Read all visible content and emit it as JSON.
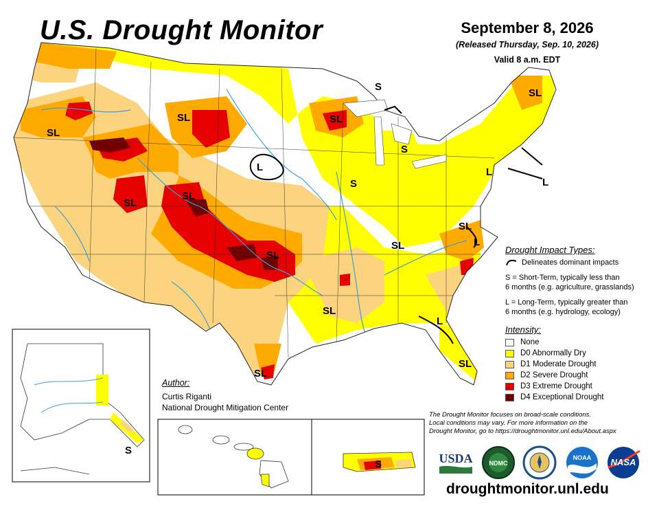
{
  "header": {
    "title": "U.S. Drought Monitor",
    "date": "September 8, 2026",
    "released": "(Released Thursday, Sep. 10, 2026)",
    "valid": "Valid 8 a.m. EDT"
  },
  "impact_types": {
    "heading": "Drought Impact Types:",
    "delineates": "Delineates dominant impacts",
    "short_term": [
      "S = Short-Term, typically less than",
      "6 months (e.g. agriculture, grasslands)"
    ],
    "long_term": [
      "L = Long-Term, typically greater than",
      "6 months (e.g. hydrology, ecology)"
    ]
  },
  "intensity": {
    "heading": "Intensity:",
    "levels": [
      {
        "label": "None",
        "color": "#ffffff"
      },
      {
        "label": "D0 Abnormally Dry",
        "color": "#ffff00"
      },
      {
        "label": "D1 Moderate Drought",
        "color": "#fcd37f"
      },
      {
        "label": "D2 Severe Drought",
        "color": "#ffaa00"
      },
      {
        "label": "D3 Extreme Drought",
        "color": "#e60000"
      },
      {
        "label": "D4 Exceptional Drought",
        "color": "#730000"
      }
    ]
  },
  "author": {
    "heading": "Author:",
    "name": "Curtis Riganti",
    "org": "National Drought Mitigation Center"
  },
  "disclaimer": [
    "The Drought Monitor focuses on broad-scale conditions.",
    "Local conditions may vary. For more information on the",
    "Drought Monitor, go to https://droughtmonitor.unl.edu/About.aspx"
  ],
  "logos": {
    "usda": "USDA",
    "ndmc": "NDMC",
    "noaa": "NOAA",
    "nasa": "NASA"
  },
  "website": "droughtmonitor.unl.edu",
  "map_labels": [
    "S",
    "SL",
    "SL",
    "SL",
    "SL",
    "S",
    "SL",
    "L",
    "S",
    "L",
    "L",
    "SL",
    "SL",
    "L",
    "SL",
    "SL",
    "L",
    "SL",
    "SL",
    "SL",
    "S",
    "S"
  ]
}
